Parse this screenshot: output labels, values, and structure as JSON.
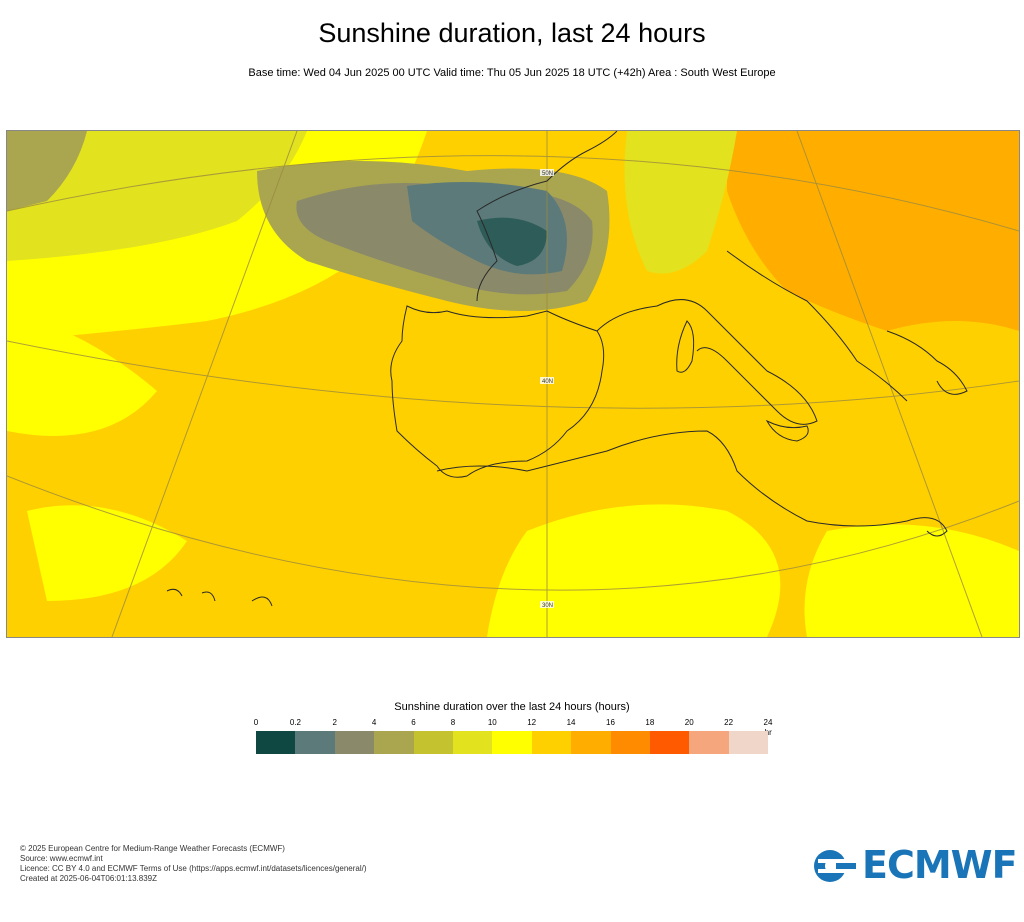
{
  "header": {
    "title": "Sunshine duration, last 24 hours",
    "subtitle": "Base time: Wed 04 Jun 2025 00 UTC Valid time: Thu 05 Jun 2025 18 UTC (+42h) Area : South West Europe"
  },
  "map": {
    "lat_labels": [
      "50N",
      "40N",
      "30N"
    ]
  },
  "legend": {
    "title": "Sunshine duration over the last 24 hours (hours)",
    "ticks": [
      "0",
      "0.2",
      "2",
      "4",
      "6",
      "8",
      "10",
      "12",
      "14",
      "16",
      "18",
      "20",
      "22",
      "24"
    ],
    "unit": "-hr",
    "colors": [
      "#0f4743",
      "#5c7a7a",
      "#8a8a6a",
      "#aaa64f",
      "#c5c22f",
      "#e2e21e",
      "#ffff00",
      "#ffd000",
      "#ffae00",
      "#ff8c00",
      "#ff5a00",
      "#f5a67c",
      "#f0d6c8"
    ]
  },
  "footer": {
    "line1": "© 2025 European Centre for Medium-Range Weather Forecasts (ECMWF)",
    "line2": "Source: www.ecmwf.int",
    "line3": "Licence: CC BY 4.0 and ECMWF Terms of Use (https://apps.ecmwf.int/datasets/licences/general/)",
    "line4": "Created at 2025-06-04T06:01:13.839Z"
  },
  "logo": {
    "text": "ECMWF",
    "color": "#1a74b8"
  }
}
